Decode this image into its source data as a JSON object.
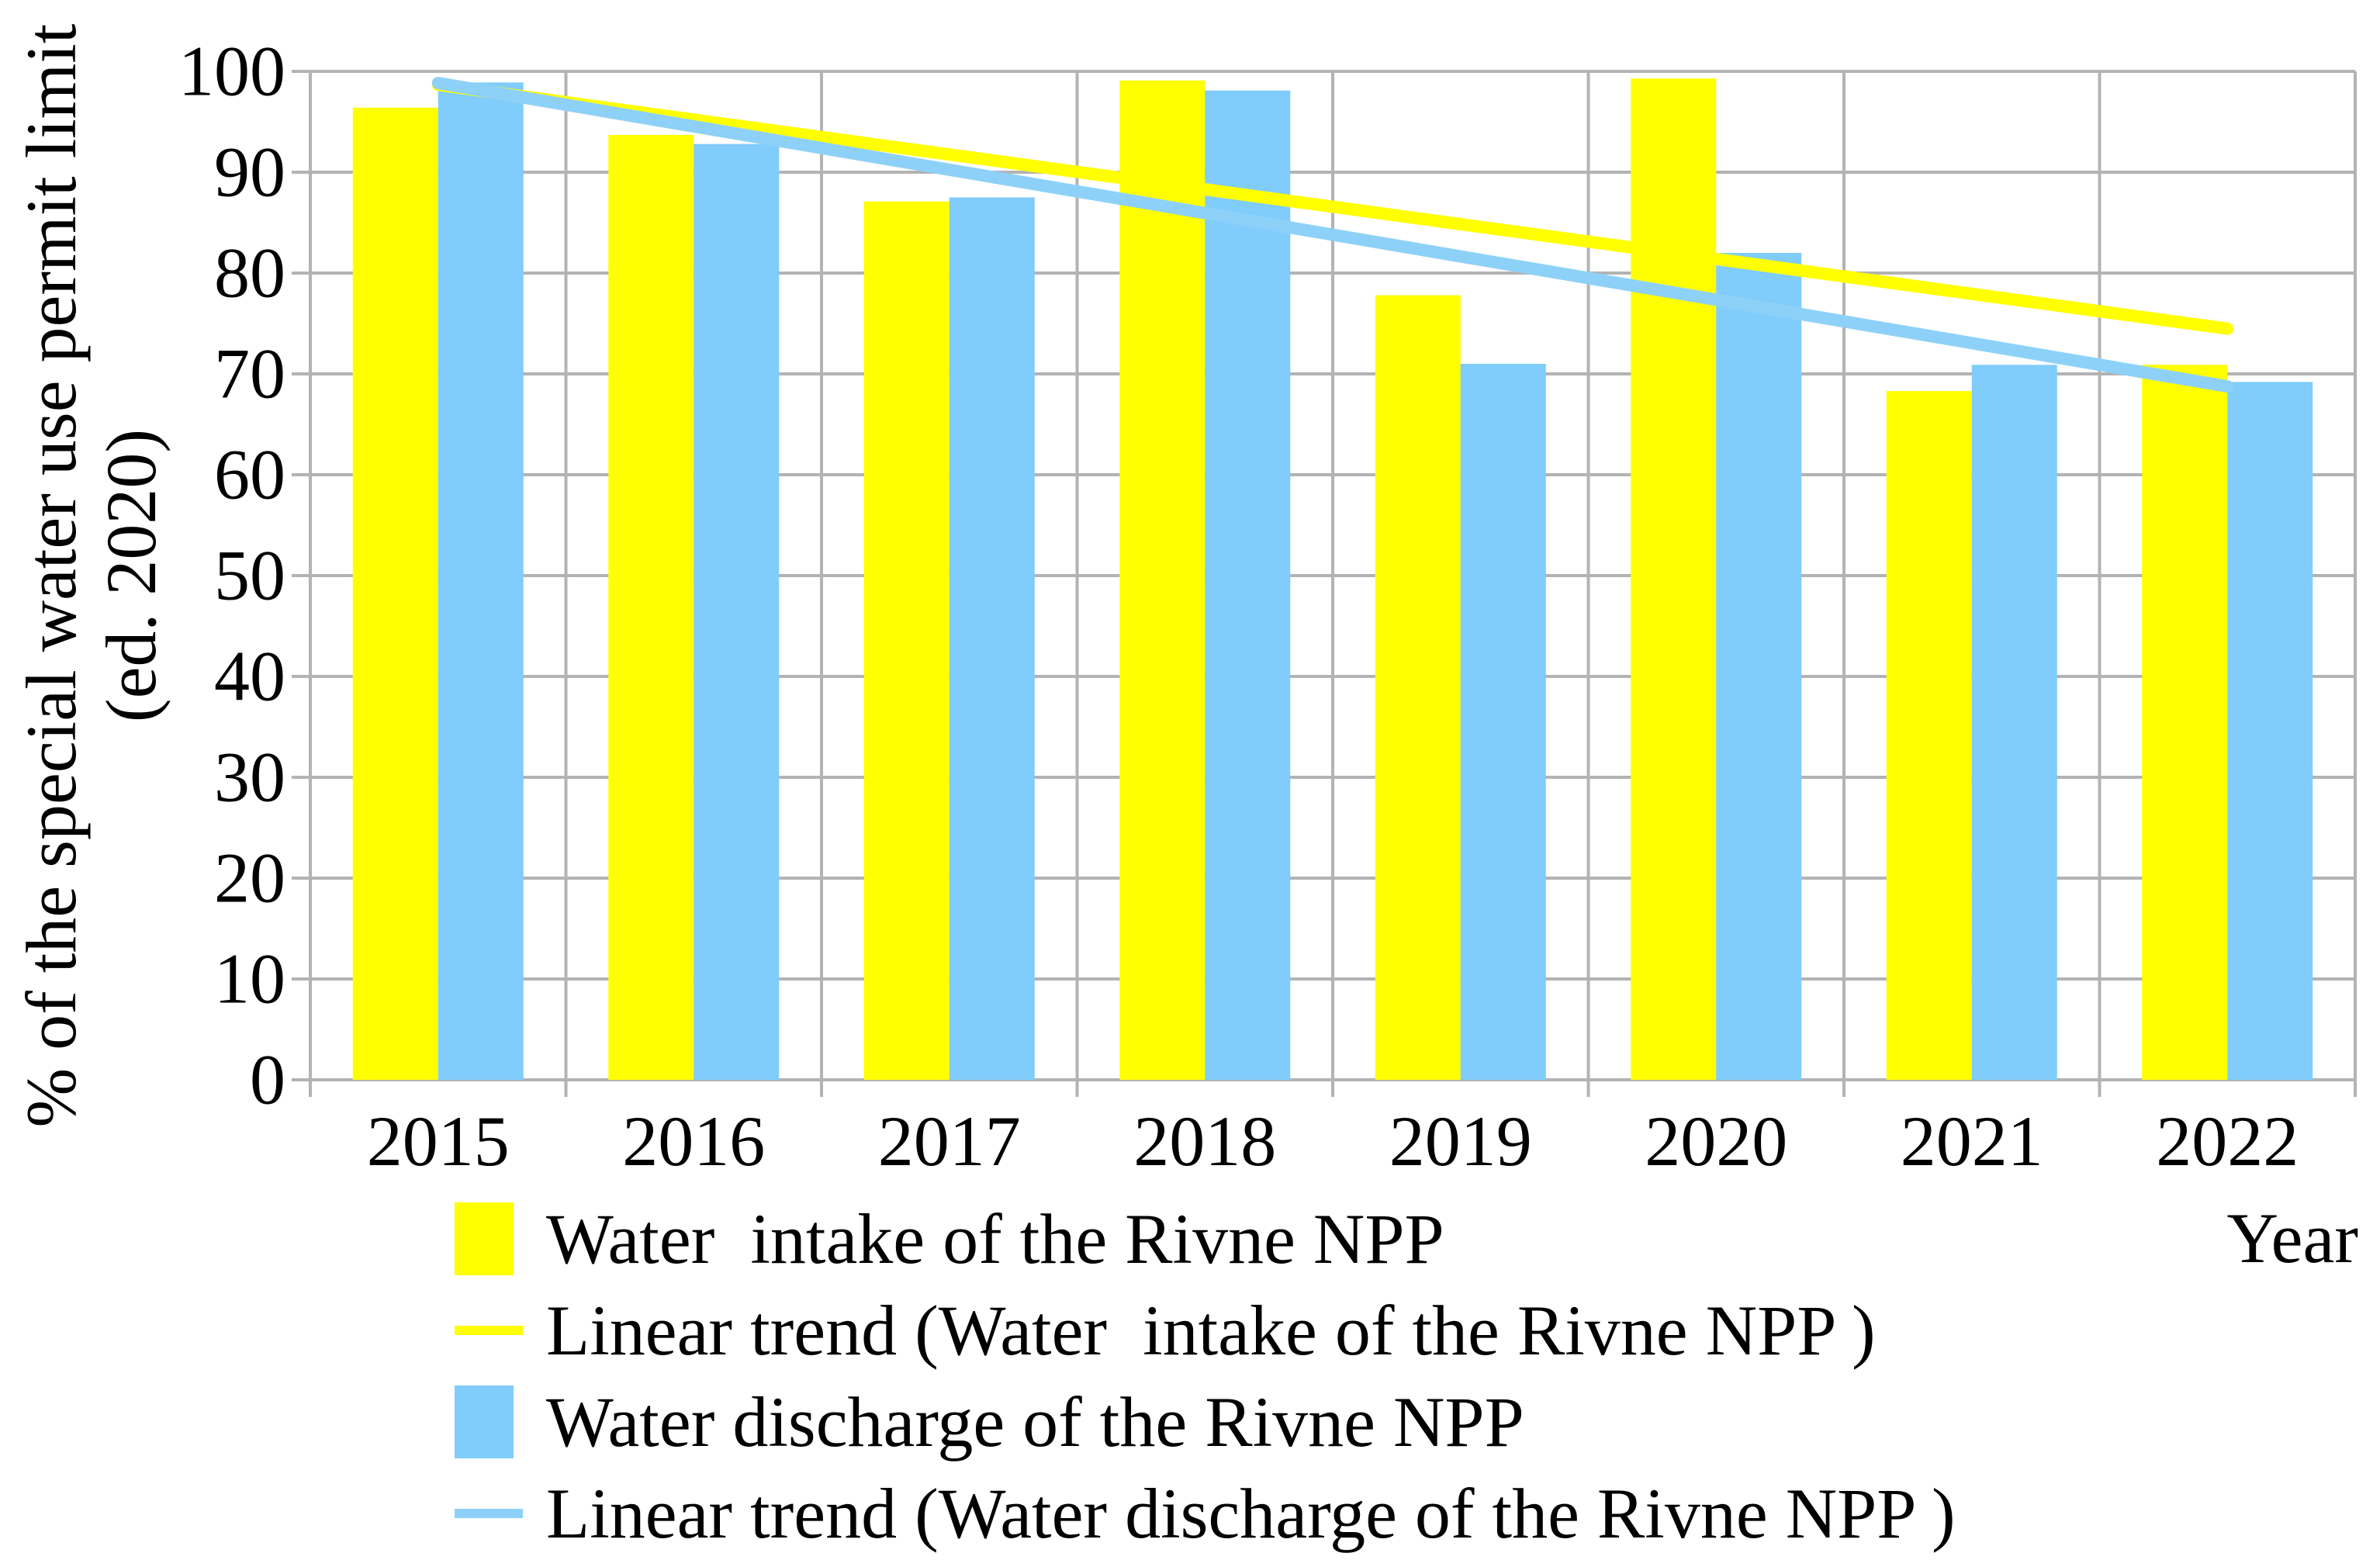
{
  "figure": {
    "y_axis_title_line1": "% of the special water use permit limit",
    "y_axis_title_line2": "(ed. 2020)",
    "x_axis_title": "Year"
  },
  "chart_data": {
    "type": "bar",
    "categories": [
      "2015",
      "2016",
      "2017",
      "2018",
      "2019",
      "2020",
      "2021",
      "2022"
    ],
    "series": [
      {
        "name": "Water  intake of the Rivne NPP",
        "values": [
          96.4,
          93.7,
          87.1,
          99.1,
          77.8,
          99.3,
          68.3,
          70.9
        ],
        "color": "#FFFF00"
      },
      {
        "name": "Water discharge of the Rivne NPP",
        "values": [
          98.9,
          92.8,
          87.5,
          98.1,
          71.0,
          82.0,
          70.9,
          69.2
        ],
        "color": "#80CCFA"
      }
    ],
    "trendlines": [
      {
        "name": "Linear trend (Water  intake of the Rivne NPP )",
        "series": 0,
        "color": "#FFFF00"
      },
      {
        "name": "Linear trend (Water discharge of the Rivne NPP )",
        "series": 1,
        "color": "#8ED1F8"
      }
    ],
    "title": "",
    "xlabel": "Year",
    "ylabel": "% of the special water use permit limit (ed. 2020)",
    "ylim": [
      0,
      100
    ],
    "ytick_step": 10,
    "grid": true,
    "legend_position": "bottom"
  },
  "legend": {
    "items": [
      {
        "label": "Water  intake of the Rivne NPP",
        "swatch": "square",
        "color": "#FFFF00"
      },
      {
        "label": "Linear trend (Water  intake of the Rivne NPP )",
        "swatch": "line",
        "color": "#FFFF00"
      },
      {
        "label": "Water discharge of the Rivne NPP",
        "swatch": "square",
        "color": "#80CCFA"
      },
      {
        "label": "Linear trend (Water discharge of the Rivne NPP )",
        "swatch": "line",
        "color": "#8ED1F8"
      }
    ]
  },
  "colors": {
    "background": "#FFFFFF",
    "gridline": "#B3B3B3",
    "text": "#000000"
  }
}
